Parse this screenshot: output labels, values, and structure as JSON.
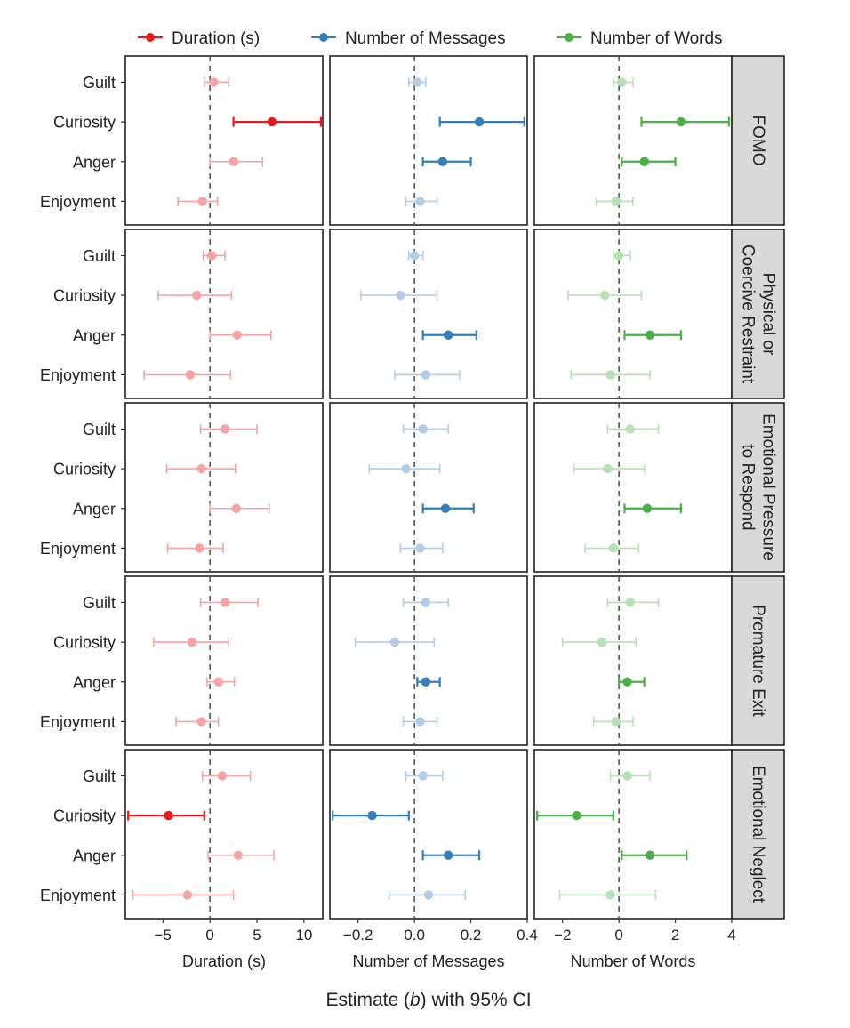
{
  "chart_data": {
    "type": "scatter",
    "subtype": "forest-plot-facet-grid",
    "x_title": "Estimate (b) with 95% CI",
    "legend": {
      "placement": "top",
      "entries": [
        "Duration (s)",
        "Number of Messages",
        "Number of Words"
      ]
    },
    "categories": [
      "Guilt",
      "Curiosity",
      "Anger",
      "Enjoyment"
    ],
    "columns": [
      {
        "name": "Duration (s)",
        "xlabel": "Duration (s)",
        "color": "#e41a1c",
        "light_color": "#f6a3a4",
        "xlim": [
          -9,
          12
        ],
        "ticks": [
          -5,
          0,
          5,
          10
        ],
        "tick_labels": [
          "−5",
          "0",
          "5",
          "10"
        ]
      },
      {
        "name": "Number of Messages",
        "xlabel": "Number of Messages",
        "color": "#377eb8",
        "light_color": "#b3cde6",
        "xlim": [
          -0.3,
          0.4
        ],
        "ticks": [
          -0.2,
          0,
          0.2,
          0.4
        ],
        "tick_labels": [
          "−0.2",
          "0.0",
          "0.2",
          "0.4"
        ]
      },
      {
        "name": "Number of Words",
        "xlabel": "Number of Words",
        "color": "#4daf4a",
        "light_color": "#b8e0b6",
        "xlim": [
          -3,
          4
        ],
        "ticks": [
          -2,
          0,
          2,
          4
        ],
        "tick_labels": [
          "−2",
          "0",
          "2",
          "4"
        ]
      }
    ],
    "rows": [
      {
        "label": [
          "FOMO"
        ],
        "panels": [
          [
            {
              "est": 0.4,
              "lo": -0.6,
              "hi": 2.0,
              "sig": false
            },
            {
              "est": 6.6,
              "lo": 2.5,
              "hi": 11.8,
              "sig": true
            },
            {
              "est": 2.5,
              "lo": 0.0,
              "hi": 5.6,
              "sig": false
            },
            {
              "est": -0.8,
              "lo": -3.4,
              "hi": 0.8,
              "sig": false
            }
          ],
          [
            {
              "est": 0.01,
              "lo": -0.02,
              "hi": 0.04,
              "sig": false
            },
            {
              "est": 0.23,
              "lo": 0.09,
              "hi": 0.39,
              "sig": true
            },
            {
              "est": 0.1,
              "lo": 0.03,
              "hi": 0.2,
              "sig": true
            },
            {
              "est": 0.02,
              "lo": -0.03,
              "hi": 0.08,
              "sig": false
            }
          ],
          [
            {
              "est": 0.1,
              "lo": -0.2,
              "hi": 0.5,
              "sig": false
            },
            {
              "est": 2.2,
              "lo": 0.8,
              "hi": 3.9,
              "sig": true
            },
            {
              "est": 0.9,
              "lo": 0.1,
              "hi": 2.0,
              "sig": true
            },
            {
              "est": -0.1,
              "lo": -0.8,
              "hi": 0.5,
              "sig": false
            }
          ]
        ]
      },
      {
        "label": [
          "Physical or",
          "Coercive Restraint"
        ],
        "panels": [
          [
            {
              "est": 0.2,
              "lo": -0.7,
              "hi": 1.6,
              "sig": false
            },
            {
              "est": -1.4,
              "lo": -5.5,
              "hi": 2.3,
              "sig": false
            },
            {
              "est": 2.9,
              "lo": 0.0,
              "hi": 6.5,
              "sig": false
            },
            {
              "est": -2.1,
              "lo": -7.0,
              "hi": 2.2,
              "sig": false
            }
          ],
          [
            {
              "est": 0.0,
              "lo": -0.02,
              "hi": 0.03,
              "sig": false
            },
            {
              "est": -0.05,
              "lo": -0.19,
              "hi": 0.08,
              "sig": false
            },
            {
              "est": 0.12,
              "lo": 0.03,
              "hi": 0.22,
              "sig": true
            },
            {
              "est": 0.04,
              "lo": -0.07,
              "hi": 0.16,
              "sig": false
            }
          ],
          [
            {
              "est": 0.0,
              "lo": -0.2,
              "hi": 0.4,
              "sig": false
            },
            {
              "est": -0.5,
              "lo": -1.8,
              "hi": 0.8,
              "sig": false
            },
            {
              "est": 1.1,
              "lo": 0.2,
              "hi": 2.2,
              "sig": true
            },
            {
              "est": -0.3,
              "lo": -1.7,
              "hi": 1.1,
              "sig": false
            }
          ]
        ]
      },
      {
        "label": [
          "Emotional Pressure",
          "to Respond"
        ],
        "panels": [
          [
            {
              "est": 1.6,
              "lo": -1.0,
              "hi": 5.0,
              "sig": false
            },
            {
              "est": -0.9,
              "lo": -4.6,
              "hi": 2.7,
              "sig": false
            },
            {
              "est": 2.8,
              "lo": 0.0,
              "hi": 6.3,
              "sig": false
            },
            {
              "est": -1.1,
              "lo": -4.5,
              "hi": 1.4,
              "sig": false
            }
          ],
          [
            {
              "est": 0.03,
              "lo": -0.04,
              "hi": 0.12,
              "sig": false
            },
            {
              "est": -0.03,
              "lo": -0.16,
              "hi": 0.09,
              "sig": false
            },
            {
              "est": 0.11,
              "lo": 0.03,
              "hi": 0.21,
              "sig": true
            },
            {
              "est": 0.02,
              "lo": -0.05,
              "hi": 0.1,
              "sig": false
            }
          ],
          [
            {
              "est": 0.4,
              "lo": -0.4,
              "hi": 1.4,
              "sig": false
            },
            {
              "est": -0.4,
              "lo": -1.6,
              "hi": 0.9,
              "sig": false
            },
            {
              "est": 1.0,
              "lo": 0.2,
              "hi": 2.2,
              "sig": true
            },
            {
              "est": -0.2,
              "lo": -1.2,
              "hi": 0.7,
              "sig": false
            }
          ]
        ]
      },
      {
        "label": [
          "Premature Exit"
        ],
        "panels": [
          [
            {
              "est": 1.6,
              "lo": -1.0,
              "hi": 5.1,
              "sig": false
            },
            {
              "est": -1.9,
              "lo": -6.0,
              "hi": 2.0,
              "sig": false
            },
            {
              "est": 0.9,
              "lo": -0.3,
              "hi": 2.6,
              "sig": false
            },
            {
              "est": -0.9,
              "lo": -3.6,
              "hi": 0.9,
              "sig": false
            }
          ],
          [
            {
              "est": 0.04,
              "lo": -0.04,
              "hi": 0.12,
              "sig": false
            },
            {
              "est": -0.07,
              "lo": -0.21,
              "hi": 0.07,
              "sig": false
            },
            {
              "est": 0.04,
              "lo": 0.01,
              "hi": 0.09,
              "sig": true
            },
            {
              "est": 0.02,
              "lo": -0.04,
              "hi": 0.08,
              "sig": false
            }
          ],
          [
            {
              "est": 0.4,
              "lo": -0.4,
              "hi": 1.4,
              "sig": false
            },
            {
              "est": -0.6,
              "lo": -2.0,
              "hi": 0.6,
              "sig": false
            },
            {
              "est": 0.3,
              "lo": 0.0,
              "hi": 0.9,
              "sig": true
            },
            {
              "est": -0.1,
              "lo": -0.9,
              "hi": 0.5,
              "sig": false
            }
          ]
        ]
      },
      {
        "label": [
          "Emotional Neglect"
        ],
        "panels": [
          [
            {
              "est": 1.3,
              "lo": -0.8,
              "hi": 4.3,
              "sig": false
            },
            {
              "est": -4.4,
              "lo": -8.7,
              "hi": -0.6,
              "sig": true
            },
            {
              "est": 3.0,
              "lo": -0.2,
              "hi": 6.8,
              "sig": false
            },
            {
              "est": -2.4,
              "lo": -8.2,
              "hi": 2.5,
              "sig": false
            }
          ],
          [
            {
              "est": 0.03,
              "lo": -0.03,
              "hi": 0.1,
              "sig": false
            },
            {
              "est": -0.15,
              "lo": -0.29,
              "hi": -0.02,
              "sig": true
            },
            {
              "est": 0.12,
              "lo": 0.03,
              "hi": 0.23,
              "sig": true
            },
            {
              "est": 0.05,
              "lo": -0.09,
              "hi": 0.18,
              "sig": false
            }
          ],
          [
            {
              "est": 0.3,
              "lo": -0.3,
              "hi": 1.1,
              "sig": false
            },
            {
              "est": -1.5,
              "lo": -2.9,
              "hi": -0.2,
              "sig": true
            },
            {
              "est": 1.1,
              "lo": 0.1,
              "hi": 2.4,
              "sig": true
            },
            {
              "est": -0.3,
              "lo": -2.1,
              "hi": 1.3,
              "sig": false
            }
          ]
        ]
      }
    ]
  }
}
